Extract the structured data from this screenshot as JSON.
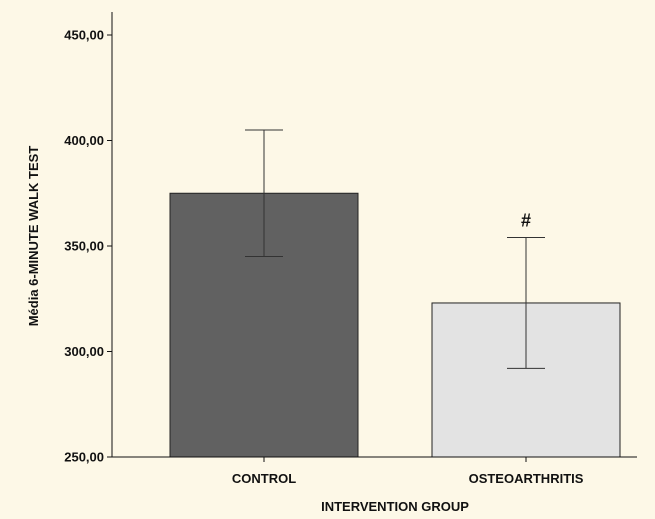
{
  "chart_data": {
    "type": "bar",
    "categories": [
      "CONTROL",
      "OSTEOARTHRITIS"
    ],
    "values": [
      375,
      323
    ],
    "error_low": [
      345,
      292
    ],
    "error_high": [
      405,
      354
    ],
    "bar_colors": [
      "#616161",
      "#e3e3e3"
    ],
    "annotations": [
      "",
      "#"
    ],
    "xlabel": "INTERVENTION GROUP",
    "ylabel": "Média 6-MINUTE WALK TEST",
    "ylim": [
      250,
      450
    ],
    "yticks": [
      250,
      300,
      350,
      400,
      450
    ],
    "ytick_labels": [
      "250,00",
      "300,00",
      "350,00",
      "400,00",
      "450,00"
    ],
    "grid": false
  }
}
